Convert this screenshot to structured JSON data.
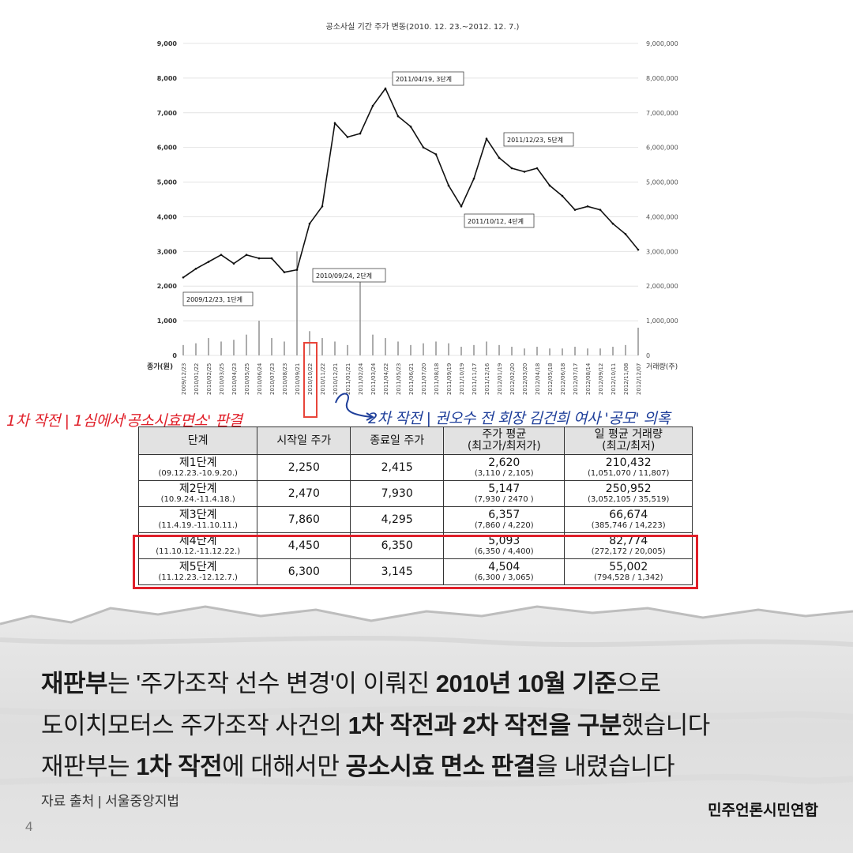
{
  "chart_data": {
    "type": "line",
    "title": "공소사실 기간 주가 변동(2010. 12. 23.~2012. 12. 7.)",
    "ylabel_left": "종가(원)",
    "ylabel_right": "거래량(주)",
    "ylim_left": [
      0,
      9000
    ],
    "ylim_right": [
      0,
      9000000
    ],
    "left_ticks": [
      "0",
      "1,000",
      "2,000",
      "3,000",
      "4,000",
      "5,000",
      "6,000",
      "7,000",
      "8,000",
      "9,000"
    ],
    "right_ticks": [
      "0",
      "1,000,000",
      "2,000,000",
      "3,000,000",
      "4,000,000",
      "5,000,000",
      "6,000,000",
      "7,000,000",
      "8,000,000",
      "9,000,000"
    ],
    "x_ticks": [
      "2009/12/23",
      "2010/01/22",
      "2010/02/25",
      "2010/03/25",
      "2010/04/23",
      "2010/05/25",
      "2010/06/24",
      "2010/07/23",
      "2010/08/23",
      "2010/09/21",
      "2010/10/22",
      "2010/11/22",
      "2010/12/21",
      "2011/01/21",
      "2011/02/24",
      "2011/03/24",
      "2011/04/22",
      "2011/05/23",
      "2011/06/21",
      "2011/07/20",
      "2011/08/18",
      "2011/09/19",
      "2011/10/19",
      "2011/11/17",
      "2011/12/16",
      "2012/01/19",
      "2012/02/20",
      "2012/03/20",
      "2012/04/18",
      "2012/05/18",
      "2012/06/18",
      "2012/07/17",
      "2012/08/14",
      "2012/09/12",
      "2012/10/11",
      "2012/11/08",
      "2012/12/07"
    ],
    "series": [
      {
        "name": "종가",
        "x": [
          "2009/12/23",
          "2010/01/22",
          "2010/02/25",
          "2010/03/25",
          "2010/04/23",
          "2010/05/25",
          "2010/06/24",
          "2010/07/23",
          "2010/08/23",
          "2010/09/21",
          "2010/10/22",
          "2010/11/22",
          "2010/12/21",
          "2011/01/21",
          "2011/02/24",
          "2011/03/24",
          "2011/04/22",
          "2011/05/23",
          "2011/06/21",
          "2011/07/20",
          "2011/08/18",
          "2011/09/19",
          "2011/10/19",
          "2011/11/17",
          "2011/12/16",
          "2012/01/19",
          "2012/02/20",
          "2012/03/20",
          "2012/04/18",
          "2012/05/18",
          "2012/06/18",
          "2012/07/17",
          "2012/08/14",
          "2012/09/12",
          "2012/10/11",
          "2012/11/08",
          "2012/12/07"
        ],
        "values": [
          2250,
          2500,
          2700,
          2900,
          2650,
          2900,
          2800,
          2800,
          2400,
          2470,
          3800,
          4300,
          6700,
          6300,
          6400,
          7200,
          7700,
          6900,
          6600,
          6000,
          5800,
          4900,
          4300,
          5100,
          6250,
          5700,
          5400,
          5300,
          5400,
          4900,
          4600,
          4200,
          4300,
          4200,
          3800,
          3500,
          3050
        ]
      }
    ],
    "volume_series": {
      "name": "거래량",
      "x": [
        "2009/12/23",
        "2010/01/22",
        "2010/02/25",
        "2010/03/25",
        "2010/04/23",
        "2010/05/25",
        "2010/06/24",
        "2010/07/23",
        "2010/08/23",
        "2010/09/21",
        "2010/10/22",
        "2010/11/22",
        "2010/12/21",
        "2011/01/21",
        "2011/02/24",
        "2011/03/24",
        "2011/04/22",
        "2011/05/23",
        "2011/06/21",
        "2011/07/20",
        "2011/08/18",
        "2011/09/19",
        "2011/10/19",
        "2011/11/17",
        "2011/12/16",
        "2012/01/19",
        "2012/02/20",
        "2012/03/20",
        "2012/04/18",
        "2012/05/18",
        "2012/06/18",
        "2012/07/17",
        "2012/08/14",
        "2012/09/12",
        "2012/10/11",
        "2012/11/08",
        "2012/12/07"
      ],
      "values": [
        300000,
        350000,
        500000,
        400000,
        450000,
        600000,
        1000000,
        500000,
        400000,
        3000000,
        700000,
        500000,
        400000,
        300000,
        2500000,
        600000,
        500000,
        400000,
        300000,
        350000,
        400000,
        350000,
        250000,
        300000,
        400000,
        300000,
        250000,
        200000,
        250000,
        200000,
        200000,
        250000,
        200000,
        200000,
        250000,
        300000,
        800000
      ]
    },
    "annotations": [
      "2009/12/23, 1단계",
      "2010/09/24, 2단계",
      "2011/04/19, 3단계",
      "2011/10/12, 4단계",
      "2011/12/23, 5단계"
    ]
  },
  "annotations": {
    "red": "1차 작전 | 1심에서'공소시효면소' 판결",
    "blue": "2차 작전 | 권오수 전 회장 김건희 여사 '공모' 의혹"
  },
  "table": {
    "headers": [
      {
        "main": "단계",
        "sub": ""
      },
      {
        "main": "시작일 주가",
        "sub": ""
      },
      {
        "main": "종료일 주가",
        "sub": ""
      },
      {
        "main": "주가 평균",
        "sub": "(최고가/최저가)"
      },
      {
        "main": "일 평균 거래량",
        "sub": "(최고/최저)"
      }
    ],
    "rows": [
      {
        "stage": "제1단계",
        "period": "(09.12.23.-10.9.20.)",
        "start": "2,250",
        "end": "2,415",
        "avg": "2,620",
        "avg_range": "(3,110 / 2,105)",
        "vol": "210,432",
        "vol_range": "(1,051,070 / 11,807)"
      },
      {
        "stage": "제2단계",
        "period": "(10.9.24.-11.4.18.)",
        "start": "2,470",
        "end": "7,930",
        "avg": "5,147",
        "avg_range": "(7,930 / 2470 )",
        "vol": "250,952",
        "vol_range": "(3,052,105 / 35,519)"
      },
      {
        "stage": "제3단계",
        "period": "(11.4.19.-11.10.11.)",
        "start": "7,860",
        "end": "4,295",
        "avg": "6,357",
        "avg_range": "(7,860 / 4,220)",
        "vol": "66,674",
        "vol_range": "(385,746 / 14,223)"
      },
      {
        "stage": "제4단계",
        "period": "(11.10.12.-11.12.22.)",
        "start": "4,450",
        "end": "6,350",
        "avg": "5,093",
        "avg_range": "(6,350 / 4,400)",
        "vol": "82,774",
        "vol_range": "(272,172 / 20,005)"
      },
      {
        "stage": "제5단계",
        "period": "(11.12.23.-12.12.7.)",
        "start": "6,300",
        "end": "3,145",
        "avg": "4,504",
        "avg_range": "(6,300 / 3,065)",
        "vol": "55,002",
        "vol_range": "(794,528 / 1,342)"
      }
    ]
  },
  "caption": {
    "line1_a": "재판부",
    "line1_b": "는 '주가조작 선수 변경'이 이뤄진 ",
    "line1_c": "2010년 10월 기준",
    "line1_d": "으로",
    "line2_a": "도이치모터스 주가조작 사건의 ",
    "line2_b": "1차 작전과 2차 작전을 구분",
    "line2_c": "했습니다",
    "line3_a": "재판부는 ",
    "line3_b": "1차 작전",
    "line3_c": "에 대해서만 ",
    "line3_d": "공소시효 면소 판결",
    "line3_e": "을 내렸습니다"
  },
  "source": "자료 출처 | 서울중앙지법",
  "brand": "민주언론시민연합",
  "page_number": "4",
  "colors": {
    "red": "#e0202a",
    "blue": "#1f3f9a",
    "table_header_bg": "#e2e2e2"
  }
}
